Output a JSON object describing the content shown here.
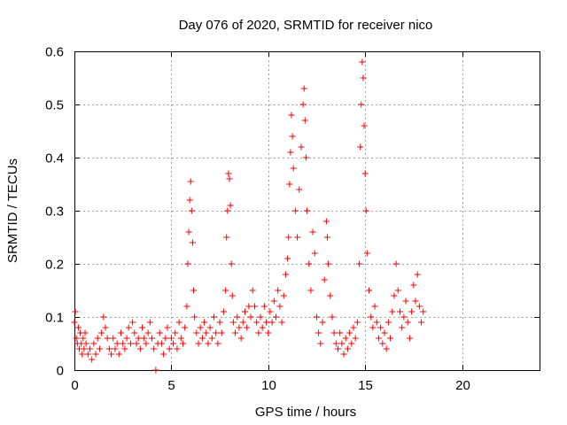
{
  "chart_data": {
    "type": "scatter",
    "title": "Day 076 of 2020, SRMTID for receiver nico",
    "xlabel": "GPS time / hours",
    "ylabel": "SRMTID / TECUs",
    "xlim": [
      0,
      24
    ],
    "ylim": [
      0,
      0.6
    ],
    "xticks": [
      0,
      5,
      10,
      15,
      20
    ],
    "xtick_labels": [
      "0",
      "5",
      "10",
      "15",
      "20"
    ],
    "yticks": [
      0,
      0.1,
      0.2,
      0.3,
      0.4,
      0.5,
      0.6
    ],
    "ytick_labels": [
      "0",
      "0.1",
      "0.2",
      "0.3",
      "0.4",
      "0.5",
      "0.6"
    ],
    "grid": true,
    "marker": "+",
    "color": "#ff0000",
    "series": [
      {
        "name": "SRMTID",
        "points": [
          [
            0.0,
            0.09
          ],
          [
            0.05,
            0.11
          ],
          [
            0.1,
            0.06
          ],
          [
            0.15,
            0.05
          ],
          [
            0.2,
            0.08
          ],
          [
            0.25,
            0.04
          ],
          [
            0.3,
            0.07
          ],
          [
            0.35,
            0.05
          ],
          [
            0.4,
            0.03
          ],
          [
            0.45,
            0.06
          ],
          [
            0.5,
            0.04
          ],
          [
            0.55,
            0.07
          ],
          [
            0.6,
            0.05
          ],
          [
            0.7,
            0.03
          ],
          [
            0.8,
            0.04
          ],
          [
            0.9,
            0.02
          ],
          [
            1.0,
            0.05
          ],
          [
            1.1,
            0.03
          ],
          [
            1.2,
            0.06
          ],
          [
            1.3,
            0.04
          ],
          [
            1.4,
            0.07
          ],
          [
            1.5,
            0.1
          ],
          [
            1.6,
            0.08
          ],
          [
            1.7,
            0.06
          ],
          [
            1.8,
            0.04
          ],
          [
            1.9,
            0.03
          ],
          [
            2.0,
            0.06
          ],
          [
            2.1,
            0.04
          ],
          [
            2.2,
            0.05
          ],
          [
            2.3,
            0.03
          ],
          [
            2.4,
            0.07
          ],
          [
            2.5,
            0.05
          ],
          [
            2.6,
            0.04
          ],
          [
            2.7,
            0.06
          ],
          [
            2.8,
            0.08
          ],
          [
            2.9,
            0.05
          ],
          [
            3.0,
            0.09
          ],
          [
            3.1,
            0.07
          ],
          [
            3.2,
            0.05
          ],
          [
            3.3,
            0.06
          ],
          [
            3.4,
            0.04
          ],
          [
            3.5,
            0.08
          ],
          [
            3.6,
            0.06
          ],
          [
            3.7,
            0.05
          ],
          [
            3.8,
            0.07
          ],
          [
            3.9,
            0.09
          ],
          [
            4.0,
            0.06
          ],
          [
            4.1,
            0.04
          ],
          [
            4.2,
            0.0
          ],
          [
            4.3,
            0.05
          ],
          [
            4.4,
            0.07
          ],
          [
            4.5,
            0.05
          ],
          [
            4.6,
            0.03
          ],
          [
            4.7,
            0.06
          ],
          [
            4.8,
            0.08
          ],
          [
            4.9,
            0.04
          ],
          [
            5.0,
            0.06
          ],
          [
            5.1,
            0.05
          ],
          [
            5.2,
            0.07
          ],
          [
            5.3,
            0.04
          ],
          [
            5.4,
            0.09
          ],
          [
            5.5,
            0.06
          ],
          [
            5.6,
            0.05
          ],
          [
            5.7,
            0.08
          ],
          [
            5.8,
            0.12
          ],
          [
            5.85,
            0.2
          ],
          [
            5.9,
            0.26
          ],
          [
            5.95,
            0.32
          ],
          [
            6.0,
            0.355
          ],
          [
            6.05,
            0.3
          ],
          [
            6.1,
            0.24
          ],
          [
            6.15,
            0.15
          ],
          [
            6.2,
            0.1
          ],
          [
            6.3,
            0.07
          ],
          [
            6.4,
            0.05
          ],
          [
            6.5,
            0.08
          ],
          [
            6.6,
            0.06
          ],
          [
            6.7,
            0.09
          ],
          [
            6.8,
            0.07
          ],
          [
            6.9,
            0.05
          ],
          [
            7.0,
            0.08
          ],
          [
            7.1,
            0.06
          ],
          [
            7.2,
            0.1
          ],
          [
            7.3,
            0.07
          ],
          [
            7.4,
            0.05
          ],
          [
            7.5,
            0.09
          ],
          [
            7.6,
            0.07
          ],
          [
            7.7,
            0.11
          ],
          [
            7.8,
            0.15
          ],
          [
            7.85,
            0.25
          ],
          [
            7.9,
            0.3
          ],
          [
            7.95,
            0.37
          ],
          [
            8.0,
            0.36
          ],
          [
            8.05,
            0.31
          ],
          [
            8.1,
            0.2
          ],
          [
            8.15,
            0.14
          ],
          [
            8.2,
            0.09
          ],
          [
            8.3,
            0.07
          ],
          [
            8.4,
            0.1
          ],
          [
            8.5,
            0.08
          ],
          [
            8.6,
            0.06
          ],
          [
            8.7,
            0.09
          ],
          [
            8.8,
            0.11
          ],
          [
            8.9,
            0.08
          ],
          [
            9.0,
            0.12
          ],
          [
            9.1,
            0.1
          ],
          [
            9.2,
            0.15
          ],
          [
            9.3,
            0.12
          ],
          [
            9.4,
            0.09
          ],
          [
            9.5,
            0.07
          ],
          [
            9.6,
            0.1
          ],
          [
            9.7,
            0.08
          ],
          [
            9.8,
            0.12
          ],
          [
            9.9,
            0.09
          ],
          [
            10.0,
            0.07
          ],
          [
            10.1,
            0.11
          ],
          [
            10.2,
            0.09
          ],
          [
            10.3,
            0.13
          ],
          [
            10.4,
            0.1
          ],
          [
            10.5,
            0.15
          ],
          [
            10.6,
            0.12
          ],
          [
            10.7,
            0.09
          ],
          [
            10.8,
            0.14
          ],
          [
            10.9,
            0.18
          ],
          [
            11.0,
            0.21
          ],
          [
            11.05,
            0.25
          ],
          [
            11.1,
            0.35
          ],
          [
            11.15,
            0.41
          ],
          [
            11.2,
            0.48
          ],
          [
            11.25,
            0.44
          ],
          [
            11.3,
            0.38
          ],
          [
            11.4,
            0.3
          ],
          [
            11.5,
            0.25
          ],
          [
            11.6,
            0.34
          ],
          [
            11.7,
            0.42
          ],
          [
            11.8,
            0.5
          ],
          [
            11.85,
            0.53
          ],
          [
            11.9,
            0.47
          ],
          [
            11.95,
            0.4
          ],
          [
            12.0,
            0.3
          ],
          [
            12.1,
            0.2
          ],
          [
            12.2,
            0.15
          ],
          [
            12.3,
            0.26
          ],
          [
            12.4,
            0.22
          ],
          [
            12.5,
            0.1
          ],
          [
            12.6,
            0.07
          ],
          [
            12.7,
            0.05
          ],
          [
            12.8,
            0.09
          ],
          [
            12.9,
            0.17
          ],
          [
            13.0,
            0.28
          ],
          [
            13.05,
            0.25
          ],
          [
            13.1,
            0.2
          ],
          [
            13.2,
            0.14
          ],
          [
            13.3,
            0.1
          ],
          [
            13.4,
            0.07
          ],
          [
            13.5,
            0.05
          ],
          [
            13.6,
            0.04
          ],
          [
            13.7,
            0.07
          ],
          [
            13.8,
            0.05
          ],
          [
            13.9,
            0.03
          ],
          [
            14.0,
            0.06
          ],
          [
            14.1,
            0.04
          ],
          [
            14.2,
            0.07
          ],
          [
            14.3,
            0.05
          ],
          [
            14.4,
            0.08
          ],
          [
            14.5,
            0.06
          ],
          [
            14.6,
            0.09
          ],
          [
            14.7,
            0.2
          ],
          [
            14.75,
            0.42
          ],
          [
            14.8,
            0.5
          ],
          [
            14.85,
            0.58
          ],
          [
            14.9,
            0.55
          ],
          [
            14.95,
            0.46
          ],
          [
            15.0,
            0.37
          ],
          [
            15.05,
            0.3
          ],
          [
            15.1,
            0.22
          ],
          [
            15.2,
            0.15
          ],
          [
            15.3,
            0.1
          ],
          [
            15.4,
            0.08
          ],
          [
            15.5,
            0.12
          ],
          [
            15.6,
            0.09
          ],
          [
            15.7,
            0.06
          ],
          [
            15.8,
            0.08
          ],
          [
            15.9,
            0.05
          ],
          [
            16.0,
            0.07
          ],
          [
            16.1,
            0.04
          ],
          [
            16.2,
            0.09
          ],
          [
            16.3,
            0.06
          ],
          [
            16.4,
            0.11
          ],
          [
            16.5,
            0.14
          ],
          [
            16.6,
            0.2
          ],
          [
            16.7,
            0.15
          ],
          [
            16.8,
            0.11
          ],
          [
            16.9,
            0.08
          ],
          [
            17.0,
            0.1
          ],
          [
            17.1,
            0.13
          ],
          [
            17.2,
            0.09
          ],
          [
            17.3,
            0.06
          ],
          [
            17.4,
            0.11
          ],
          [
            17.5,
            0.16
          ],
          [
            17.6,
            0.13
          ],
          [
            17.7,
            0.18
          ],
          [
            17.8,
            0.12
          ],
          [
            17.9,
            0.09
          ],
          [
            18.0,
            0.11
          ]
        ]
      }
    ]
  }
}
